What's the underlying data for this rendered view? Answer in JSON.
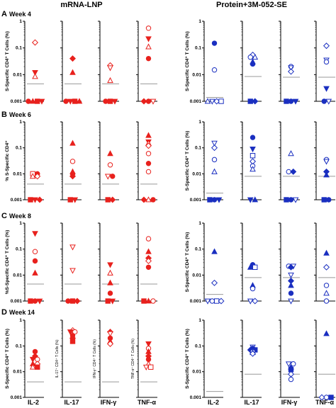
{
  "figure": {
    "group_titles": [
      "mRNA-LNP",
      "Protein+3M-052-SE"
    ],
    "x_categories": [
      "IL-2",
      "IL-17",
      "IFN-γ",
      "TNF-α"
    ],
    "colors": {
      "mrna": "#e8211d",
      "protein": "#1a2fc0",
      "threshold": "#999999",
      "axis": "#000000"
    }
  },
  "chart_data": [
    {
      "type": "scatter",
      "panel": "A",
      "title": "Week 4",
      "group": "mRNA-LNP",
      "ylabel": "S-Specific CD4⁺ T Cells (%)",
      "yscale": "log",
      "ylim": [
        0.001,
        1
      ],
      "yticks": [
        "1",
        "0.1",
        "0.01",
        "0.001"
      ],
      "categories": [
        "IL-2",
        "IL-17",
        "IFN-γ",
        "TNF-α"
      ],
      "threshold": [
        0.0045,
        0.0045,
        0.0045,
        0.0045
      ],
      "points": [
        [
          [
            "diamond_open",
            0.16
          ],
          [
            "tri_down_filled",
            0.012
          ],
          [
            "tri_up_open",
            0.0085
          ],
          [
            "circle_filled",
            0.001
          ],
          [
            "tri_up_filled",
            0.001
          ],
          [
            "square_filled",
            0.001
          ],
          [
            "tri_down_filled",
            0.001
          ]
        ],
        [
          [
            "diamond_filled",
            0.04
          ],
          [
            "tri_up_filled",
            0.012
          ],
          [
            "circle_filled",
            0.001
          ],
          [
            "tri_down_filled",
            0.001
          ],
          [
            "square_filled",
            0.001
          ],
          [
            "tri_up_filled",
            0.001
          ]
        ],
        [
          [
            "diamond_open",
            0.022
          ],
          [
            "tri_down_open",
            0.018
          ],
          [
            "tri_up_open",
            0.006
          ],
          [
            "circle_filled",
            0.001
          ],
          [
            "square_filled",
            0.001
          ],
          [
            "tri_down_filled",
            0.001
          ]
        ],
        [
          [
            "circle_open",
            0.55
          ],
          [
            "tri_down_filled",
            0.22
          ],
          [
            "tri_up_open",
            0.11
          ],
          [
            "circle_filled",
            0.04
          ],
          [
            "diamond_filled",
            0.001
          ],
          [
            "circle_filled",
            0.001
          ],
          [
            "tri_down_open",
            0.001
          ]
        ]
      ]
    },
    {
      "type": "scatter",
      "panel": "A",
      "title": "",
      "group": "Protein+3M-052-SE",
      "ylabel": "S-Specific CD4⁺ T Cells (%)",
      "yscale": "log",
      "ylim": [
        0.001,
        1
      ],
      "yticks": [
        "1",
        "0.1",
        "0.01",
        "0.001"
      ],
      "categories": [
        "IL-2",
        "IL-17",
        "IFN-γ",
        "TNF-α"
      ],
      "threshold": [
        0.0014,
        0.0085,
        0.008,
        0.008
      ],
      "points": [
        [
          [
            "circle_filled",
            0.15
          ],
          [
            "circle_open",
            0.015
          ],
          [
            "tri_up_open",
            0.001
          ],
          [
            "tri_down_open",
            0.001
          ],
          [
            "diamond_open",
            0.001
          ],
          [
            "square_open",
            0.001
          ]
        ],
        [
          [
            "diamond_open",
            0.055
          ],
          [
            "circle_open",
            0.045
          ],
          [
            "tri_up_open",
            0.045
          ],
          [
            "tri_up_filled",
            0.03
          ],
          [
            "circle_filled",
            0.025
          ],
          [
            "square_filled",
            0.001
          ],
          [
            "diamond_filled",
            0.001
          ]
        ],
        [
          [
            "circle_open",
            0.02
          ],
          [
            "tri_down_open",
            0.018
          ],
          [
            "diamond_open",
            0.013
          ],
          [
            "square_filled",
            0.001
          ],
          [
            "circle_filled",
            0.001
          ],
          [
            "tri_down_filled",
            0.001
          ]
        ],
        [
          [
            "diamond_open",
            0.12
          ],
          [
            "tri_down_open",
            0.035
          ],
          [
            "circle_open",
            0.03
          ],
          [
            "tri_down_filled",
            0.003
          ],
          [
            "circle_filled",
            0.001
          ],
          [
            "tri_down_open",
            0.001
          ]
        ]
      ]
    },
    {
      "type": "scatter",
      "panel": "B",
      "title": "Week 6",
      "group": "mRNA-LNP",
      "ylabel": "% S-Specific CD4⁺",
      "yscale": "log",
      "ylim": [
        0.001,
        1
      ],
      "yticks": [
        "1",
        "0.1",
        "0.01",
        "0.001"
      ],
      "categories": [
        "IL-2",
        "IL-17",
        "IFN-γ",
        "TNF-α"
      ],
      "threshold": [
        0.004,
        0.004,
        0.004,
        0.004
      ],
      "points": [
        [
          [
            "square_open",
            0.01
          ],
          [
            "circle_filled",
            0.01
          ],
          [
            "tri_up_open",
            0.008
          ],
          [
            "diamond_open",
            0.008
          ],
          [
            "square_filled",
            0.001
          ],
          [
            "tri_down_filled",
            0.001
          ],
          [
            "diamond_filled",
            0.001
          ]
        ],
        [
          [
            "tri_up_filled",
            0.15
          ],
          [
            "circle_open",
            0.03
          ],
          [
            "tri_up_filled",
            0.012
          ],
          [
            "circle_filled",
            0.01
          ],
          [
            "diamond_filled",
            0.008
          ],
          [
            "square_filled",
            0.001
          ],
          [
            "tri_down_filled",
            0.001
          ]
        ],
        [
          [
            "tri_up_filled",
            0.06
          ],
          [
            "circle_open",
            0.022
          ],
          [
            "tri_down_open",
            0.008
          ],
          [
            "circle_filled",
            0.008
          ],
          [
            "square_filled",
            0.001
          ],
          [
            "diamond_filled",
            0.001
          ]
        ],
        [
          [
            "tri_up_filled",
            0.3
          ],
          [
            "tri_down_filled",
            0.17
          ],
          [
            "tri_up_open",
            0.15
          ],
          [
            "diamond_open",
            0.12
          ],
          [
            "circle_open",
            0.06
          ],
          [
            "circle_filled",
            0.025
          ],
          [
            "circle_open",
            0.012
          ],
          [
            "diamond_filled",
            0.001
          ],
          [
            "tri_up_open",
            0.001
          ],
          [
            "circle_filled",
            0.001
          ]
        ]
      ]
    },
    {
      "type": "scatter",
      "panel": "B",
      "title": "",
      "group": "Protein+3M-052-SE",
      "ylabel": "S-Specific CD4⁺ T Cells (%)",
      "yscale": "log",
      "ylim": [
        0.001,
        1
      ],
      "yticks": [
        "1",
        "0.1",
        "0.01",
        "0.001"
      ],
      "categories": [
        "IL-2",
        "IL-17",
        "IFN-γ",
        "TNF-α"
      ],
      "threshold": [
        0.0018,
        0.008,
        0.008,
        0.008
      ],
      "points": [
        [
          [
            "tri_down_open",
            0.15
          ],
          [
            "diamond_open",
            0.1
          ],
          [
            "circle_open",
            0.035
          ],
          [
            "tri_up_open",
            0.012
          ],
          [
            "square_filled",
            0.001
          ],
          [
            "circle_filled",
            0.001
          ],
          [
            "tri_down_filled",
            0.001
          ]
        ],
        [
          [
            "circle_filled",
            0.25
          ],
          [
            "tri_down_filled",
            0.09
          ],
          [
            "square_open",
            0.05
          ],
          [
            "diamond_open",
            0.03
          ],
          [
            "circle_open",
            0.02
          ],
          [
            "tri_up_open",
            0.015
          ],
          [
            "tri_down_filled",
            0.001
          ],
          [
            "tri_up_filled",
            0.001
          ]
        ],
        [
          [
            "tri_up_open",
            0.06
          ],
          [
            "circle_open",
            0.012
          ],
          [
            "diamond_filled",
            0.012
          ],
          [
            "square_filled",
            0.001
          ],
          [
            "circle_filled",
            0.001
          ],
          [
            "tri_down_open",
            0.001
          ]
        ],
        [
          [
            "circle_open",
            0.035
          ],
          [
            "tri_down_open",
            0.03
          ],
          [
            "diamond_filled",
            0.012
          ],
          [
            "tri_up_filled",
            0.009
          ],
          [
            "square_filled",
            0.001
          ],
          [
            "circle_filled",
            0.001
          ]
        ]
      ]
    },
    {
      "type": "scatter",
      "panel": "C",
      "title": "Week 8",
      "group": "mRNA-LNP",
      "ylabel": "%S-Specific CD4⁺ T Cells (%)",
      "yscale": "log",
      "ylim": [
        0.001,
        1
      ],
      "yticks": [
        "1",
        "0.1",
        "0.01",
        "0.001"
      ],
      "categories": [
        "IL-2",
        "IL-17",
        "IFN-γ",
        "TNF-α"
      ],
      "threshold": [
        0.0045,
        0.0045,
        0.0045,
        0.0045
      ],
      "points": [
        [
          [
            "tri_down_filled",
            0.4
          ],
          [
            "circle_open",
            0.08
          ],
          [
            "circle_filled",
            0.035
          ],
          [
            "tri_up_filled",
            0.012
          ],
          [
            "square_filled",
            0.001
          ],
          [
            "circle_filled",
            0.001
          ],
          [
            "tri_down_filled",
            0.001
          ]
        ],
        [
          [
            "tri_down_open",
            0.12
          ],
          [
            "tri_down_open",
            0.015
          ],
          [
            "circle_filled",
            0.001
          ],
          [
            "square_filled",
            0.001
          ],
          [
            "diamond_filled",
            0.001
          ]
        ],
        [
          [
            "tri_down_filled",
            0.025
          ],
          [
            "tri_up_open",
            0.012
          ],
          [
            "tri_up_filled",
            0.005
          ],
          [
            "circle_filled",
            0.002
          ],
          [
            "square_filled",
            0.001
          ],
          [
            "tri_down_filled",
            0.001
          ]
        ],
        [
          [
            "circle_open",
            0.25
          ],
          [
            "tri_up_filled",
            0.08
          ],
          [
            "diamond_filled",
            0.045
          ],
          [
            "diamond_open",
            0.035
          ],
          [
            "circle_filled",
            0.02
          ],
          [
            "square_filled",
            0.001
          ],
          [
            "tri_up_filled",
            0.001
          ],
          [
            "circle_open",
            0.001
          ]
        ]
      ]
    },
    {
      "type": "scatter",
      "panel": "C",
      "title": "",
      "group": "Protein+3M-052-SE",
      "ylabel": "S-Specific CD4⁺ T Cells (%)",
      "yscale": "log",
      "ylim": [
        0.001,
        1
      ],
      "yticks": [
        "1",
        "0.1",
        "0.01",
        "0.001"
      ],
      "categories": [
        "IL-2",
        "IL-17",
        "IFN-γ",
        "TNF-α"
      ],
      "threshold": [
        0.0018,
        0.008,
        0.008,
        0.008
      ],
      "points": [
        [
          [
            "tri_up_filled",
            0.08
          ],
          [
            "diamond_open",
            0.005
          ],
          [
            "tri_down_open",
            0.001
          ],
          [
            "circle_open",
            0.001
          ],
          [
            "square_open",
            0.001
          ],
          [
            "diamond_open",
            0.001
          ]
        ],
        [
          [
            "circle_filled",
            0.025
          ],
          [
            "tri_up_filled",
            0.02
          ],
          [
            "square_open",
            0.02
          ],
          [
            "tri_up_filled",
            0.004
          ],
          [
            "circle_open",
            0.003
          ],
          [
            "tri_down_open",
            0.001
          ],
          [
            "diamond_open",
            0.001
          ]
        ],
        [
          [
            "circle_open",
            0.022
          ],
          [
            "tri_down_open",
            0.022
          ],
          [
            "diamond_filled",
            0.02
          ],
          [
            "tri_down_open",
            0.01
          ],
          [
            "diamond_filled",
            0.006
          ],
          [
            "tri_up_filled",
            0.004
          ],
          [
            "circle_filled",
            0.002
          ],
          [
            "tri_down_open",
            0.001
          ]
        ],
        [
          [
            "tri_up_filled",
            0.07
          ],
          [
            "diamond_open",
            0.02
          ],
          [
            "circle_open",
            0.004
          ],
          [
            "tri_up_open",
            0.002
          ],
          [
            "circle_open",
            0.001
          ]
        ]
      ]
    },
    {
      "type": "scatter",
      "panel": "D",
      "title": "Week 14",
      "group": "mRNA-LNP",
      "ylabel": "S-Specific CD4⁺ T Cells (%)",
      "column_ylabels": [
        "",
        "IL-17⁺ CD4⁺ T Cells (%)",
        "IFN-γ⁺ CD4⁺ T Cells (%)",
        "TNF-α⁺ CD4⁺ T Cells (%)"
      ],
      "yscale": "log",
      "ylim": [
        0.001,
        1
      ],
      "yticks": [
        "1",
        "0.1",
        "0.01",
        "0.001"
      ],
      "categories": [
        "IL-2",
        "IL-17",
        "IFN-γ",
        "TNF-α"
      ],
      "threshold": [
        0.004,
        0.004,
        0.004,
        0.004
      ],
      "points": [
        [
          [
            "circle_filled",
            0.06
          ],
          [
            "diamond_filled",
            0.04
          ],
          [
            "tri_down_filled",
            0.03
          ],
          [
            "circle_open",
            0.03
          ],
          [
            "tri_up_filled",
            0.02
          ],
          [
            "diamond_open",
            0.02
          ],
          [
            "tri_up_open",
            0.015
          ],
          [
            "square_filled",
            0.015
          ]
        ],
        [
          [
            "diamond_open",
            0.4
          ],
          [
            "tri_down_filled",
            0.35
          ],
          [
            "circle_open",
            0.35
          ],
          [
            "circle_filled",
            0.25
          ],
          [
            "diamond_filled",
            0.2
          ],
          [
            "square_filled",
            0.15
          ]
        ],
        [
          [
            "diamond_filled",
            0.35
          ],
          [
            "tri_down_open",
            0.3
          ],
          [
            "circle_filled",
            0.2
          ],
          [
            "tri_up_filled",
            0.15
          ],
          [
            "diamond_open",
            0.12
          ]
        ],
        [
          [
            "tri_down_filled",
            0.12
          ],
          [
            "circle_open",
            0.08
          ],
          [
            "tri_up_filled",
            0.06
          ],
          [
            "diamond_filled",
            0.04
          ],
          [
            "circle_filled",
            0.03
          ],
          [
            "tri_up_open",
            0.02
          ],
          [
            "tri_down_open",
            0.015
          ],
          [
            "square_open",
            0.015
          ]
        ]
      ]
    },
    {
      "type": "scatter",
      "panel": "D",
      "title": "",
      "group": "Protein+3M-052-SE",
      "ylabel": "S-Specific CD4⁺ T Cells (%)",
      "yscale": "log",
      "ylim": [
        0.001,
        1
      ],
      "yticks": [
        "1",
        "0.1",
        "0.01",
        "0.001"
      ],
      "categories": [
        "IL-2",
        "IL-17",
        "IFN-γ",
        "TNF-α"
      ],
      "threshold": [
        0.0017,
        0.008,
        0.008,
        0.008
      ],
      "points": [
        [],
        [
          [
            "tri_down_open",
            0.09
          ],
          [
            "circle_filled",
            0.08
          ],
          [
            "diamond_filled",
            0.07
          ],
          [
            "square_filled",
            0.07
          ],
          [
            "circle_open",
            0.06
          ],
          [
            "tri_up_open",
            0.055
          ],
          [
            "diamond_open",
            0.05
          ]
        ],
        [
          [
            "tri_down_open",
            0.02
          ],
          [
            "circle_open",
            0.02
          ],
          [
            "tri_up_filled",
            0.015
          ],
          [
            "square_filled",
            0.012
          ],
          [
            "diamond_open",
            0.008
          ],
          [
            "circle_open",
            0.005
          ]
        ],
        [
          [
            "tri_up_filled",
            0.3
          ],
          [
            "diamond_open",
            0.001
          ],
          [
            "circle_open",
            0.001
          ],
          [
            "square_filled",
            0.001
          ]
        ]
      ]
    }
  ]
}
